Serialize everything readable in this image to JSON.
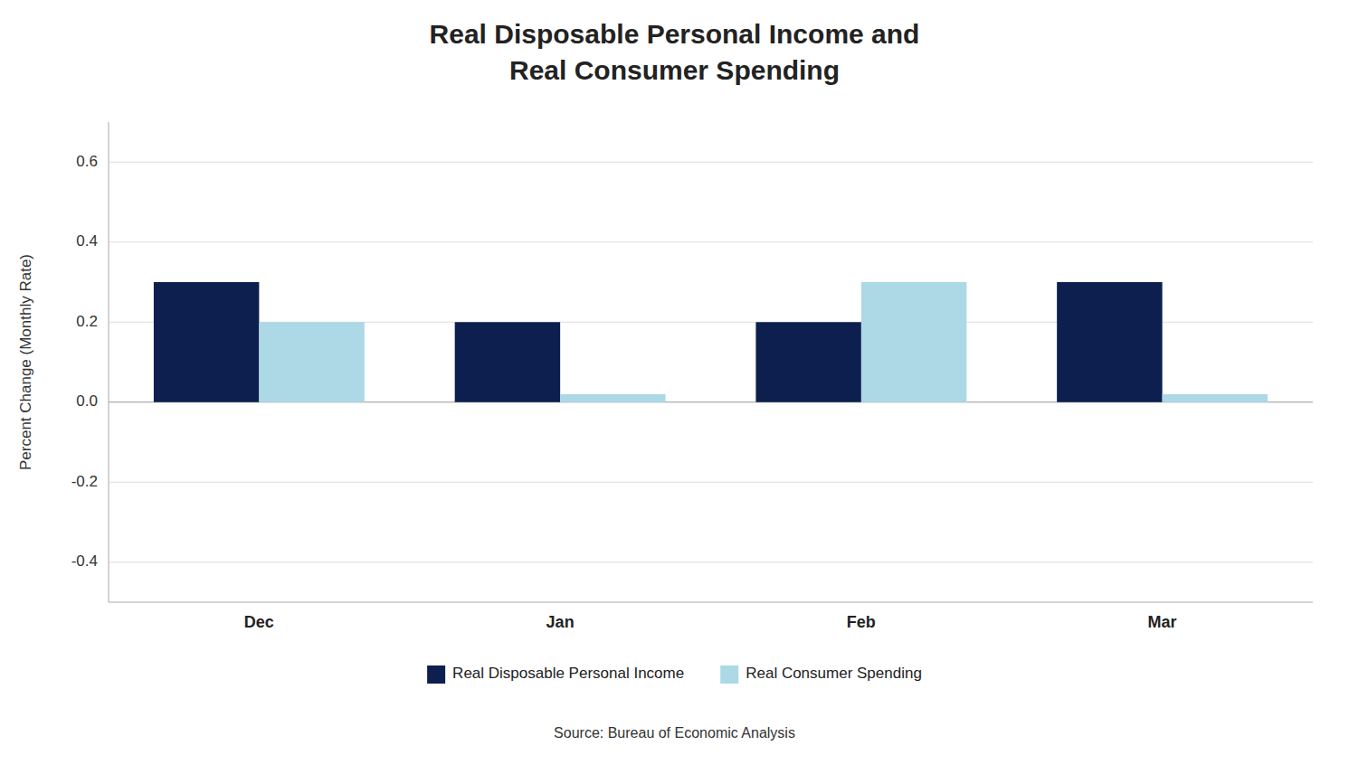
{
  "chart_data": {
    "type": "bar",
    "title": "Real Disposable Personal Income and\nReal Consumer Spending",
    "ylabel": "Percent Change (Monthly Rate)",
    "categories": [
      "Dec",
      "Jan",
      "Feb",
      "Mar"
    ],
    "series": [
      {
        "name": "Real Disposable Personal Income",
        "color": "#0d1f4e",
        "values": [
          0.3,
          0.2,
          0.2,
          0.3
        ]
      },
      {
        "name": "Real Consumer Spending",
        "color": "#add8e6",
        "values": [
          0.2,
          0.02,
          0.3,
          0.02
        ]
      }
    ],
    "ylim": [
      -0.5,
      0.7
    ],
    "yticks": [
      -0.4,
      -0.2,
      {
        "value": 0,
        "label": "0.0"
      },
      0.2,
      0.4,
      0.6
    ],
    "grid": true,
    "legend": "bottom",
    "annotations": [
      "Source:  Bureau of Economic Analysis"
    ]
  }
}
